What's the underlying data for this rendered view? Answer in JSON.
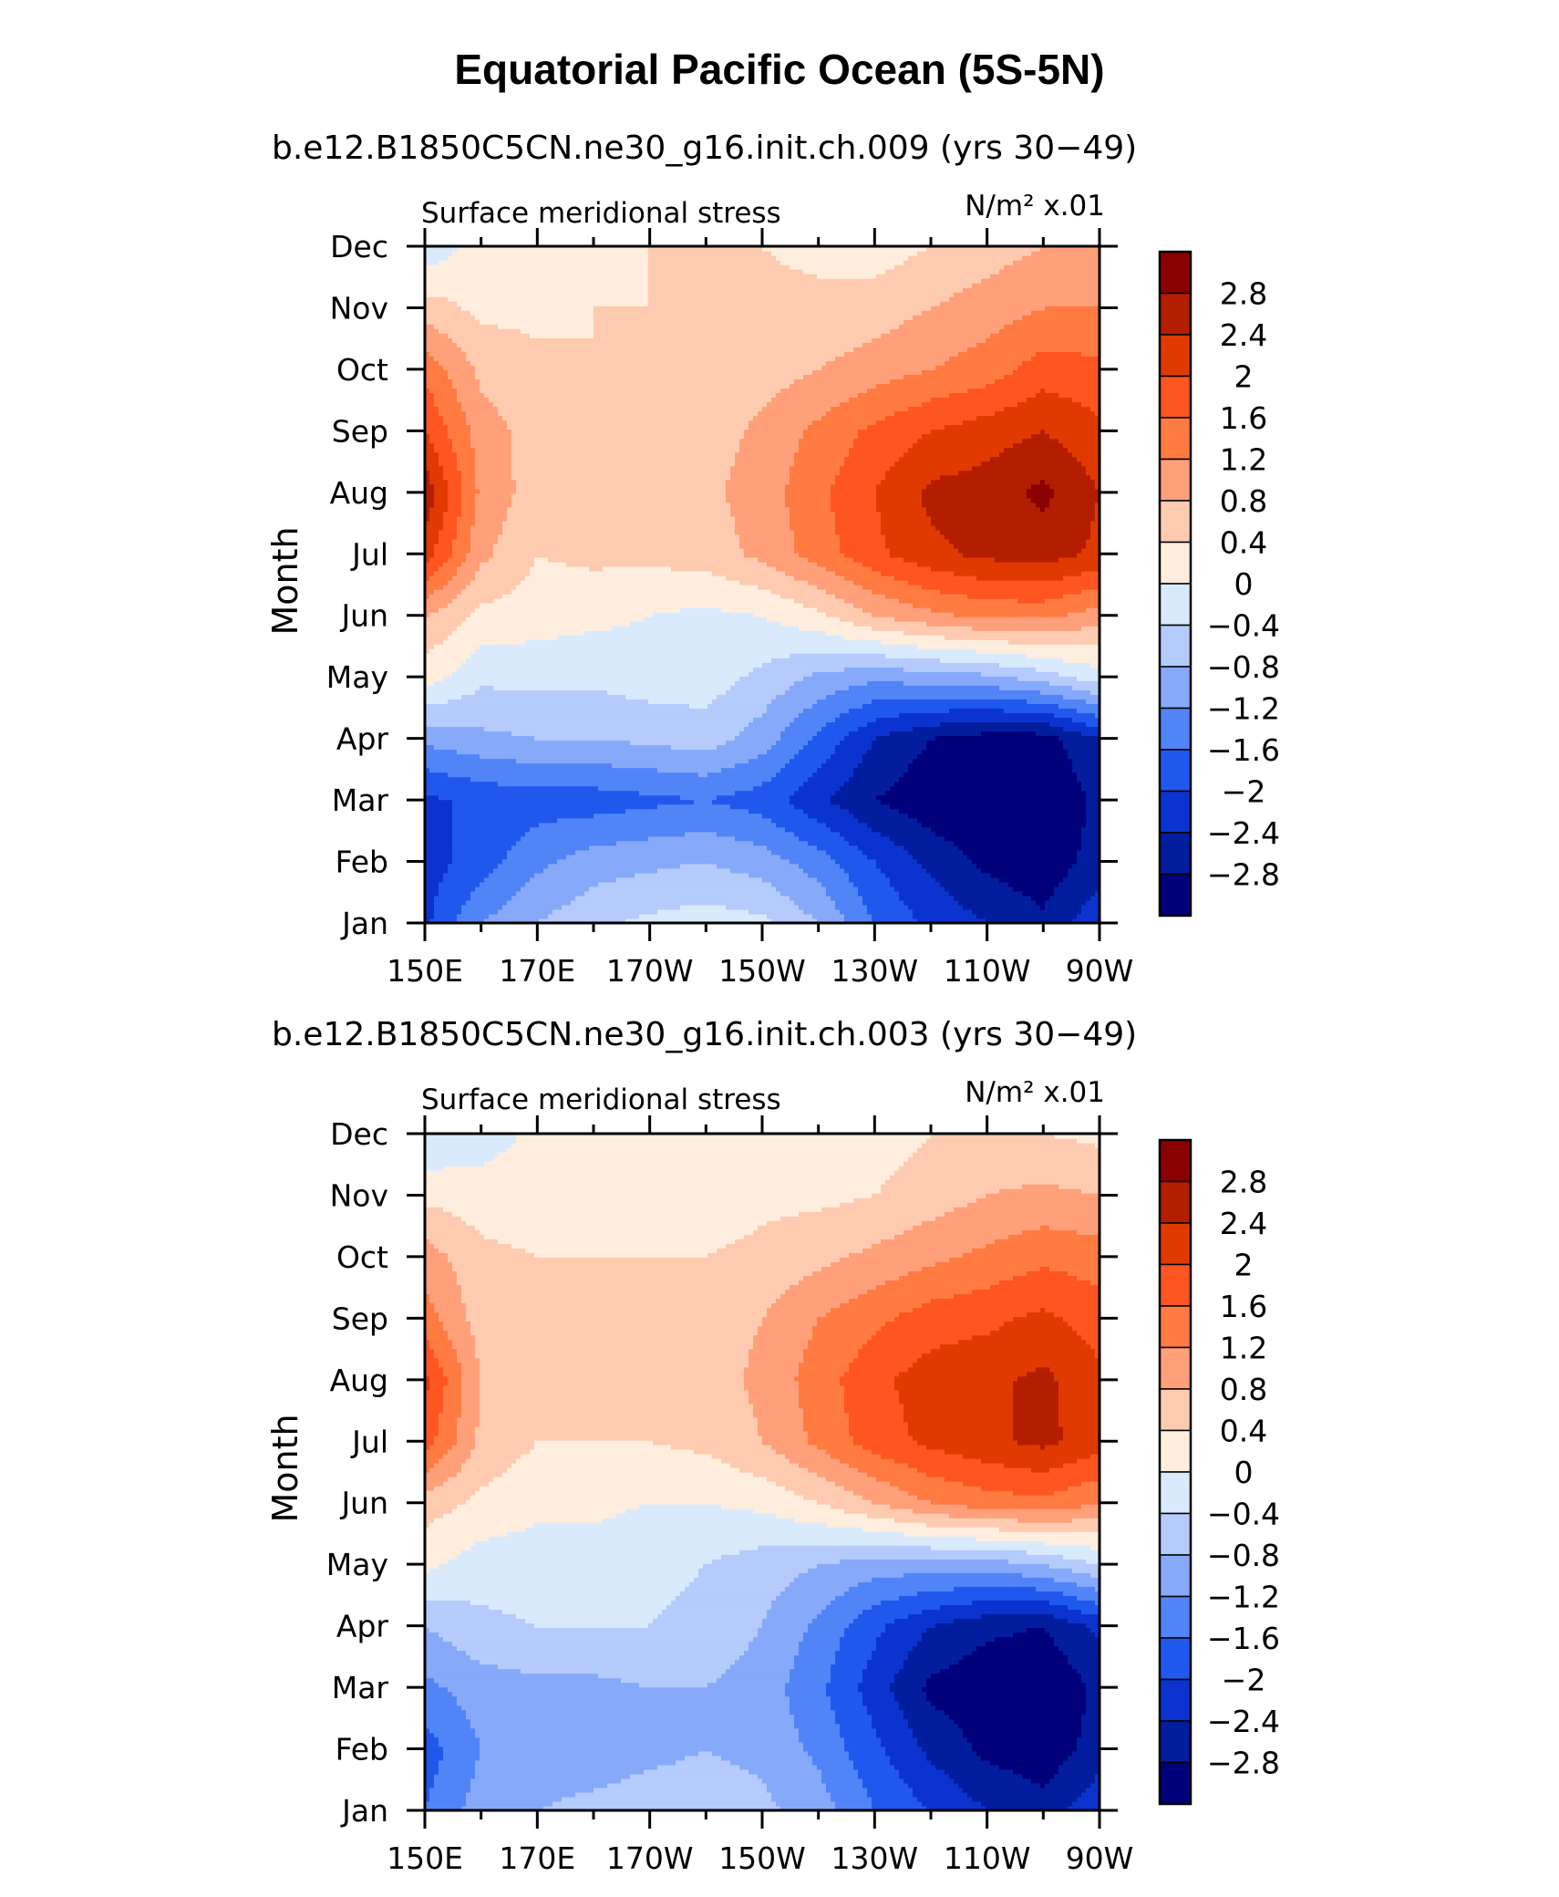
{
  "title": "Equatorial Pacific Ocean (5S-5N)",
  "chart_data": {
    "type": "heatmap",
    "panels": [
      {
        "subtitle": "b.e12.B1850C5CN.ne30_g16.init.ch.009 (yrs 30−49)",
        "left_label": "Surface meridional stress",
        "right_label": "N/m² x.01",
        "ylabel": "Month",
        "x_ticks": [
          "150E",
          "170E",
          "170W",
          "150W",
          "130W",
          "110W",
          "90W"
        ],
        "y_ticks": [
          "Jan",
          "Feb",
          "Mar",
          "Apr",
          "May",
          "Jun",
          "Jul",
          "Aug",
          "Sep",
          "Oct",
          "Nov",
          "Dec"
        ],
        "x_values_degE": [
          150,
          160,
          170,
          180,
          190,
          200,
          210,
          220,
          230,
          240,
          250,
          260,
          270
        ],
        "values": [
          [
            -2.1,
            -1.2,
            -0.8,
            -0.5,
            -0.3,
            -0.2,
            -0.3,
            -0.8,
            -1.6,
            -2.1,
            -2.4,
            -2.7,
            -2.1
          ],
          [
            -2.2,
            -1.8,
            -1.3,
            -1.0,
            -0.9,
            -0.8,
            -1.0,
            -1.4,
            -2.0,
            -2.5,
            -2.9,
            -3.1,
            -2.6
          ],
          [
            -2.1,
            -1.9,
            -1.8,
            -1.8,
            -1.7,
            -1.6,
            -1.8,
            -2.3,
            -2.8,
            -3.1,
            -3.2,
            -3.2,
            -2.7
          ],
          [
            -1.1,
            -0.9,
            -0.8,
            -0.8,
            -0.7,
            -0.6,
            -1.0,
            -1.7,
            -2.4,
            -2.8,
            -3.0,
            -3.0,
            -2.4
          ],
          [
            0.2,
            -0.3,
            -0.3,
            -0.3,
            -0.2,
            -0.2,
            -0.5,
            -0.9,
            -1.1,
            -1.0,
            -0.9,
            -0.6,
            -0.2
          ],
          [
            0.8,
            0.3,
            0.2,
            0.1,
            0.0,
            -0.1,
            0.0,
            0.3,
            0.8,
            1.1,
            1.3,
            1.3,
            1.0
          ],
          [
            2.2,
            0.9,
            0.4,
            0.5,
            0.5,
            0.6,
            0.9,
            1.4,
            1.9,
            2.3,
            2.5,
            2.6,
            2.3
          ],
          [
            2.7,
            1.1,
            0.6,
            0.6,
            0.6,
            0.7,
            1.0,
            1.5,
            2.0,
            2.5,
            2.6,
            2.9,
            2.4
          ],
          [
            2.0,
            1.0,
            0.6,
            0.5,
            0.5,
            0.6,
            0.9,
            1.3,
            1.7,
            2.0,
            2.2,
            2.4,
            2.1
          ],
          [
            1.5,
            0.7,
            0.5,
            0.4,
            0.4,
            0.5,
            0.6,
            0.8,
            1.0,
            1.2,
            1.4,
            1.8,
            1.7
          ],
          [
            0.6,
            0.3,
            0.3,
            0.4,
            0.4,
            0.4,
            0.5,
            0.5,
            0.6,
            0.8,
            1.0,
            1.2,
            1.2
          ],
          [
            -0.3,
            0.2,
            0.2,
            0.3,
            0.4,
            0.4,
            0.4,
            0.3,
            0.2,
            0.4,
            0.6,
            0.8,
            0.8
          ]
        ]
      },
      {
        "subtitle": "b.e12.B1850C5CN.ne30_g16.init.ch.003 (yrs 30−49)",
        "left_label": "Surface meridional stress",
        "right_label": "N/m² x.01",
        "ylabel": "Month",
        "x_ticks": [
          "150E",
          "170E",
          "170W",
          "150W",
          "130W",
          "110W",
          "90W"
        ],
        "y_ticks": [
          "Jan",
          "Feb",
          "Mar",
          "Apr",
          "May",
          "Jun",
          "Jul",
          "Aug",
          "Sep",
          "Oct",
          "Nov",
          "Dec"
        ],
        "x_values_degE": [
          150,
          160,
          170,
          180,
          190,
          200,
          210,
          220,
          230,
          240,
          250,
          260,
          270
        ],
        "values": [
          [
            -1.6,
            -1.0,
            -0.8,
            -0.7,
            -0.6,
            -0.6,
            -0.7,
            -1.0,
            -1.6,
            -2.0,
            -2.4,
            -2.6,
            -2.1
          ],
          [
            -1.8,
            -1.2,
            -1.0,
            -1.0,
            -0.9,
            -0.8,
            -0.9,
            -1.3,
            -1.9,
            -2.5,
            -2.9,
            -3.1,
            -2.6
          ],
          [
            -1.3,
            -1.0,
            -0.9,
            -0.9,
            -0.8,
            -0.8,
            -1.0,
            -1.5,
            -2.2,
            -2.9,
            -3.1,
            -3.2,
            -2.7
          ],
          [
            -0.8,
            -0.5,
            -0.4,
            -0.4,
            -0.4,
            -0.5,
            -0.8,
            -1.3,
            -1.9,
            -2.4,
            -2.7,
            -2.8,
            -2.3
          ],
          [
            0.1,
            -0.2,
            -0.2,
            -0.2,
            -0.3,
            -0.4,
            -0.6,
            -0.8,
            -1.0,
            -1.0,
            -1.0,
            -0.8,
            -0.4
          ],
          [
            0.6,
            0.3,
            0.1,
            0.1,
            0.0,
            0.0,
            0.1,
            0.4,
            0.8,
            1.2,
            1.4,
            1.5,
            1.2
          ],
          [
            1.8,
            0.7,
            0.4,
            0.4,
            0.4,
            0.5,
            0.8,
            1.3,
            1.8,
            2.1,
            2.3,
            2.5,
            2.2
          ],
          [
            2.1,
            0.8,
            0.5,
            0.5,
            0.5,
            0.6,
            0.9,
            1.4,
            1.9,
            2.2,
            2.3,
            2.5,
            2.1
          ],
          [
            1.4,
            0.6,
            0.5,
            0.5,
            0.5,
            0.6,
            0.8,
            1.2,
            1.5,
            1.8,
            1.9,
            2.1,
            1.8
          ],
          [
            1.0,
            0.5,
            0.4,
            0.4,
            0.4,
            0.4,
            0.5,
            0.7,
            0.9,
            1.1,
            1.3,
            1.5,
            1.4
          ],
          [
            0.3,
            0.2,
            0.2,
            0.2,
            0.2,
            0.2,
            0.3,
            0.3,
            0.4,
            0.6,
            0.8,
            0.9,
            0.8
          ],
          [
            -0.4,
            -0.2,
            0.1,
            0.1,
            0.1,
            0.1,
            0.1,
            0.2,
            0.2,
            0.4,
            0.5,
            0.4,
            0.3
          ]
        ]
      }
    ],
    "colorbar": {
      "labels": [
        "2.8",
        "2.4",
        "2",
        "1.6",
        "1.2",
        "0.8",
        "0.4",
        "0",
        "−0.4",
        "−0.8",
        "−1.2",
        "−1.6",
        "−2",
        "−2.4",
        "−2.8"
      ],
      "levels": [
        2.8,
        2.4,
        2.0,
        1.6,
        1.2,
        0.8,
        0.4,
        0.0,
        -0.4,
        -0.8,
        -1.2,
        -1.6,
        -2.0,
        -2.4,
        -2.8
      ],
      "colors": [
        "#8b0000",
        "#b31d00",
        "#e03a00",
        "#ff5521",
        "#ff7b42",
        "#ffa07a",
        "#ffcbb0",
        "#ffeedd",
        "#d9eafd",
        "#b4cbfb",
        "#87a9f9",
        "#5184f7",
        "#2058ee",
        "#0b33cf",
        "#021d9d",
        "#00007a"
      ]
    }
  }
}
